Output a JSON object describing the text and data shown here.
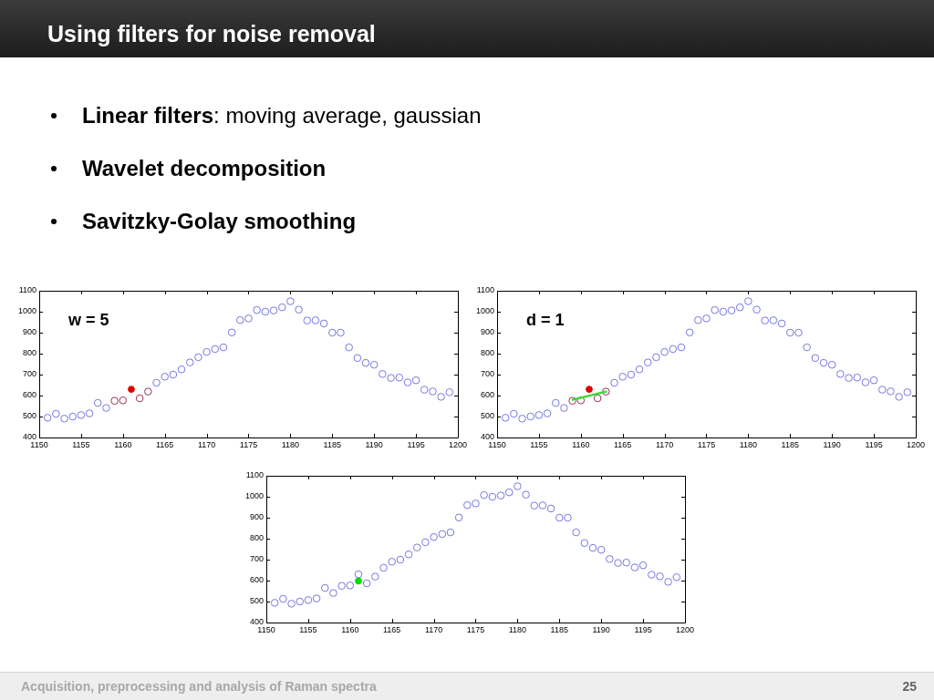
{
  "chart_data": [
    {
      "type": "scatter",
      "title": "Using filters for noise removal",
      "annotations": [
        "Linear filters: moving average, gaussian",
        "Wavelet decomposition",
        "Savitzky-Golay smoothing",
        "w = 5"
      ],
      "marker": "circle",
      "xlim": [
        1150,
        1200
      ],
      "xticks": [
        1150,
        1155,
        1160,
        1165,
        1170,
        1175,
        1180,
        1185,
        1190,
        1195,
        1200
      ],
      "ylim": [
        400,
        1100
      ],
      "yticks": [
        400,
        500,
        600,
        700,
        800,
        900,
        1000,
        1100
      ],
      "series": [
        {
          "color": "#7878e0",
          "x": [
            1151,
            1152,
            1153,
            1154,
            1155,
            1156,
            1157,
            1158,
            1164,
            1165,
            1166,
            1167,
            1168,
            1169,
            1170,
            1171,
            1172,
            1173,
            1174,
            1175,
            1176,
            1177,
            1178,
            1179,
            1180,
            1181,
            1182,
            1183,
            1184,
            1185,
            1186,
            1187,
            1188,
            1189,
            1190,
            1191,
            1192,
            1193,
            1194,
            1195,
            1196,
            1197,
            1198,
            1199
          ],
          "values": [
            494,
            513,
            490,
            500,
            507,
            515,
            565,
            541,
            661,
            690,
            700,
            725,
            758,
            783,
            808,
            822,
            830,
            901,
            960,
            968,
            1008,
            1000,
            1006,
            1021,
            1050,
            1010,
            958,
            959,
            944,
            900,
            900,
            830,
            779,
            756,
            747,
            703,
            684,
            686,
            663,
            673,
            628,
            620,
            594,
            616
          ]
        },
        {
          "color": "#993355",
          "x": [
            1159,
            1160,
            1162,
            1163
          ],
          "values": [
            575,
            577,
            587,
            619
          ]
        },
        {
          "color": "#e00000",
          "x": [
            1161
          ],
          "values": [
            630
          ]
        }
      ]
    },
    {
      "type": "scatter",
      "annotations": [
        "d = 1"
      ],
      "marker": "circle",
      "xlim": [
        1150,
        1200
      ],
      "xticks": [
        1150,
        1155,
        1160,
        1165,
        1170,
        1175,
        1180,
        1185,
        1190,
        1195,
        1200
      ],
      "ylim": [
        400,
        1100
      ],
      "yticks": [
        400,
        500,
        600,
        700,
        800,
        900,
        1000,
        1100
      ],
      "series": [
        {
          "color": "#7878e0",
          "x": [
            1151,
            1152,
            1153,
            1154,
            1155,
            1156,
            1157,
            1158,
            1164,
            1165,
            1166,
            1167,
            1168,
            1169,
            1170,
            1171,
            1172,
            1173,
            1174,
            1175,
            1176,
            1177,
            1178,
            1179,
            1180,
            1181,
            1182,
            1183,
            1184,
            1185,
            1186,
            1187,
            1188,
            1189,
            1190,
            1191,
            1192,
            1193,
            1194,
            1195,
            1196,
            1197,
            1198,
            1199
          ],
          "values": [
            494,
            513,
            490,
            500,
            507,
            515,
            565,
            541,
            661,
            690,
            700,
            725,
            758,
            783,
            808,
            822,
            830,
            901,
            960,
            968,
            1008,
            1000,
            1006,
            1021,
            1050,
            1010,
            958,
            959,
            944,
            900,
            900,
            830,
            779,
            756,
            747,
            703,
            684,
            686,
            663,
            673,
            628,
            620,
            594,
            616
          ]
        },
        {
          "color": "#993355",
          "x": [
            1159,
            1160,
            1162,
            1163
          ],
          "values": [
            575,
            577,
            587,
            619
          ]
        },
        {
          "color": "#e00000",
          "x": [
            1161
          ],
          "values": [
            630
          ]
        },
        {
          "type": "line",
          "marker": "none",
          "color": "#33dd33",
          "x": [
            1159,
            1163
          ],
          "values": [
            580,
            619
          ]
        }
      ]
    },
    {
      "type": "scatter",
      "annotations": [
        "Acquisition, preprocessing and analysis of Raman spectra",
        "25"
      ],
      "marker": "circle",
      "xlim": [
        1150,
        1200
      ],
      "xticks": [
        1150,
        1155,
        1160,
        1165,
        1170,
        1175,
        1180,
        1185,
        1190,
        1195,
        1200
      ],
      "ylim": [
        400,
        1100
      ],
      "yticks": [
        400,
        500,
        600,
        700,
        800,
        900,
        1000,
        1100
      ],
      "series": [
        {
          "color": "#7878e0",
          "x": [
            1151,
            1152,
            1153,
            1154,
            1155,
            1156,
            1157,
            1158,
            1159,
            1160,
            1161,
            1162,
            1163,
            1164,
            1165,
            1166,
            1167,
            1168,
            1169,
            1170,
            1171,
            1172,
            1173,
            1174,
            1175,
            1176,
            1177,
            1178,
            1179,
            1180,
            1181,
            1182,
            1183,
            1184,
            1185,
            1186,
            1187,
            1188,
            1189,
            1190,
            1191,
            1192,
            1193,
            1194,
            1195,
            1196,
            1197,
            1198,
            1199
          ],
          "values": [
            494,
            513,
            490,
            500,
            507,
            515,
            565,
            541,
            575,
            577,
            630,
            587,
            619,
            661,
            690,
            700,
            725,
            758,
            783,
            808,
            822,
            830,
            901,
            960,
            968,
            1008,
            1000,
            1006,
            1021,
            1050,
            1010,
            958,
            959,
            944,
            900,
            900,
            830,
            779,
            756,
            747,
            703,
            684,
            686,
            663,
            673,
            628,
            620,
            594,
            616
          ]
        },
        {
          "color": "#00dd00",
          "x": [
            1161
          ],
          "values": [
            598
          ]
        }
      ]
    }
  ]
}
